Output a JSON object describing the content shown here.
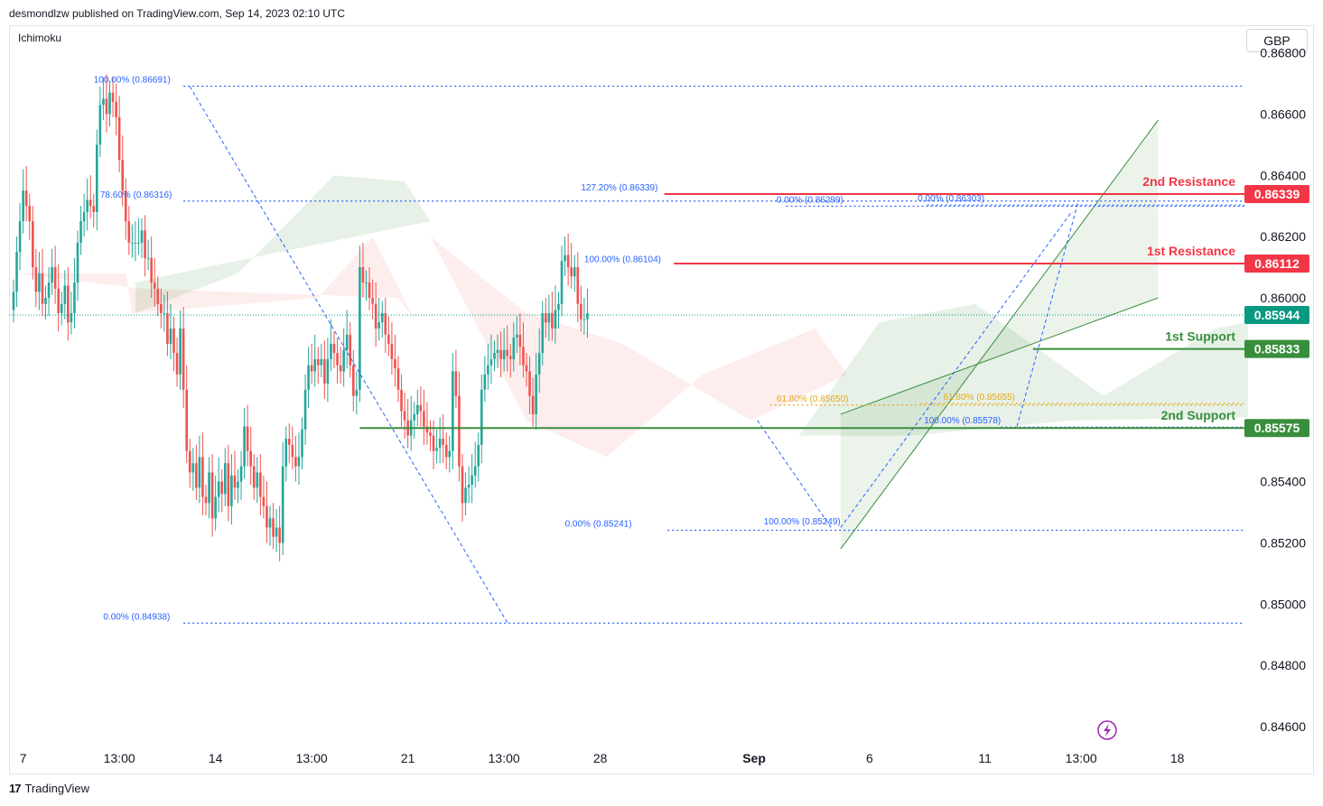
{
  "header": {
    "published": "desmondlzw published on TradingView.com, Sep 14, 2023 02:10 UTC"
  },
  "indicator": "Ichimoku",
  "currency": "GBP",
  "footer": {
    "brand": "TradingView"
  },
  "colors": {
    "bull": "#26a69a",
    "bear": "#ef5350",
    "fib": "#2962ff",
    "resistance": "#f23645",
    "support": "#388e3c",
    "fib_gold": "#e6a817",
    "price_line": "#089981"
  },
  "chart_data": {
    "type": "candlestick",
    "ylim": [
      0.8455,
      0.8689
    ],
    "y_ticks": [
      {
        "value": 0.868,
        "label": "0.86800"
      },
      {
        "value": 0.866,
        "label": "0.86600"
      },
      {
        "value": 0.864,
        "label": "0.86400"
      },
      {
        "value": 0.862,
        "label": "0.86200"
      },
      {
        "value": 0.86,
        "label": "0.86000"
      },
      {
        "value": 0.854,
        "label": "0.85400"
      },
      {
        "value": 0.852,
        "label": "0.85200"
      },
      {
        "value": 0.85,
        "label": "0.85000"
      },
      {
        "value": 0.848,
        "label": "0.84800"
      },
      {
        "value": 0.846,
        "label": "0.84600"
      }
    ],
    "x_ticks": [
      {
        "t": 3,
        "label": "7"
      },
      {
        "t": 33,
        "label": "13:00"
      },
      {
        "t": 63,
        "label": "14"
      },
      {
        "t": 93,
        "label": "13:00"
      },
      {
        "t": 123,
        "label": "21"
      },
      {
        "t": 153,
        "label": "13:00"
      },
      {
        "t": 183,
        "label": "28"
      },
      {
        "t": 231,
        "label": "Sep"
      },
      {
        "t": 267,
        "label": "6"
      },
      {
        "t": 303,
        "label": "11"
      },
      {
        "t": 333,
        "label": "13:00"
      },
      {
        "t": 363,
        "label": "18"
      }
    ],
    "candles_closes": [
      0.8602,
      0.8615,
      0.8625,
      0.8635,
      0.863,
      0.8625,
      0.861,
      0.8602,
      0.8608,
      0.8598,
      0.86,
      0.8605,
      0.861,
      0.8603,
      0.8595,
      0.8598,
      0.8604,
      0.8592,
      0.8595,
      0.8605,
      0.8618,
      0.8625,
      0.8628,
      0.8632,
      0.863,
      0.8628,
      0.865,
      0.8663,
      0.8665,
      0.866,
      0.8667,
      0.8664,
      0.8659,
      0.8645,
      0.8635,
      0.8625,
      0.8618,
      0.8618,
      0.8618,
      0.8618,
      0.8622,
      0.8613,
      0.8613,
      0.8605,
      0.8603,
      0.8598,
      0.8595,
      0.8595,
      0.8585,
      0.859,
      0.8582,
      0.8575,
      0.859,
      0.857,
      0.855,
      0.8543,
      0.8546,
      0.8538,
      0.8548,
      0.8535,
      0.8533,
      0.8543,
      0.8528,
      0.8535,
      0.854,
      0.8536,
      0.8546,
      0.8532,
      0.8542,
      0.8538,
      0.854,
      0.8545,
      0.8558,
      0.855,
      0.8545,
      0.8538,
      0.8543,
      0.8535,
      0.8532,
      0.8525,
      0.8528,
      0.8522,
      0.8525,
      0.852,
      0.8545,
      0.8554,
      0.8552,
      0.8548,
      0.8545,
      0.8548,
      0.8557,
      0.857,
      0.8578,
      0.8576,
      0.858,
      0.8578,
      0.858,
      0.8572,
      0.858,
      0.8585,
      0.8582,
      0.8578,
      0.8576,
      0.8583,
      0.8588,
      0.8578,
      0.8568,
      0.857,
      0.861,
      0.8605,
      0.8605,
      0.86,
      0.8598,
      0.859,
      0.8592,
      0.8595,
      0.8588,
      0.8585,
      0.858,
      0.8577,
      0.857,
      0.8563,
      0.856,
      0.8555,
      0.856,
      0.8562,
      0.8565,
      0.8563,
      0.8558,
      0.8556,
      0.8555,
      0.855,
      0.8551,
      0.8554,
      0.8552,
      0.8548,
      0.855,
      0.8576,
      0.8568,
      0.8545,
      0.8533,
      0.8538,
      0.8539,
      0.8542,
      0.8545,
      0.8552,
      0.857,
      0.8575,
      0.8578,
      0.858,
      0.8582,
      0.8583,
      0.858,
      0.8583,
      0.8581,
      0.858,
      0.8587,
      0.8588,
      0.8584,
      0.8578,
      0.8576,
      0.8568,
      0.8562,
      0.8575,
      0.8582,
      0.8595,
      0.8592,
      0.8595,
      0.859,
      0.8596,
      0.8598,
      0.8612,
      0.8614,
      0.861,
      0.8607,
      0.861,
      0.8598,
      0.8593,
      0.8593,
      0.8595
    ],
    "series": [
      {
        "name": "1st Resistance",
        "values": [
          0.86112
        ]
      },
      {
        "name": "2nd Resistance",
        "values": [
          0.86339
        ]
      },
      {
        "name": "1st Support",
        "values": [
          0.85833
        ]
      },
      {
        "name": "2nd Support",
        "values": [
          0.85575
        ]
      }
    ],
    "levels": [
      {
        "label": "2nd Resistance",
        "value_label": "0.86339",
        "value": 0.86339,
        "type": "resistance"
      },
      {
        "label": "1st Resistance",
        "value_label": "0.86112",
        "value": 0.86112,
        "type": "resistance"
      },
      {
        "label": "1st Support",
        "value_label": "0.85833",
        "value": 0.85833,
        "type": "support"
      },
      {
        "label": "2nd Support",
        "value_label": "0.85575",
        "value": 0.85575,
        "type": "support"
      }
    ],
    "current_price": {
      "value": 0.85944,
      "label": "0.85944"
    },
    "fib_labels": [
      {
        "text": "100.00% (0.86691)",
        "value": 0.86691
      },
      {
        "text": "78.60% (0.86316)",
        "value": 0.86316
      },
      {
        "text": "0.00% (0.84938)",
        "value": 0.84938
      },
      {
        "text": "127.20% (0.86339)",
        "value": 0.86339
      },
      {
        "text": "100.00% (0.86104)",
        "value": 0.86104
      },
      {
        "text": "0.00% (0.85241)",
        "value": 0.85241
      },
      {
        "text": "0.00% (0.86299)",
        "value": 0.86299
      },
      {
        "text": "0.00% (0.86303)",
        "value": 0.86303
      },
      {
        "text": "61.80% (0.85655)",
        "value": 0.85655
      },
      {
        "text": "61.80% (0.85650)",
        "value": 0.8565
      },
      {
        "text": "100.00% (0.85578)",
        "value": 0.85578
      },
      {
        "text": "100.00% (0.85249)",
        "value": 0.85249
      }
    ]
  }
}
